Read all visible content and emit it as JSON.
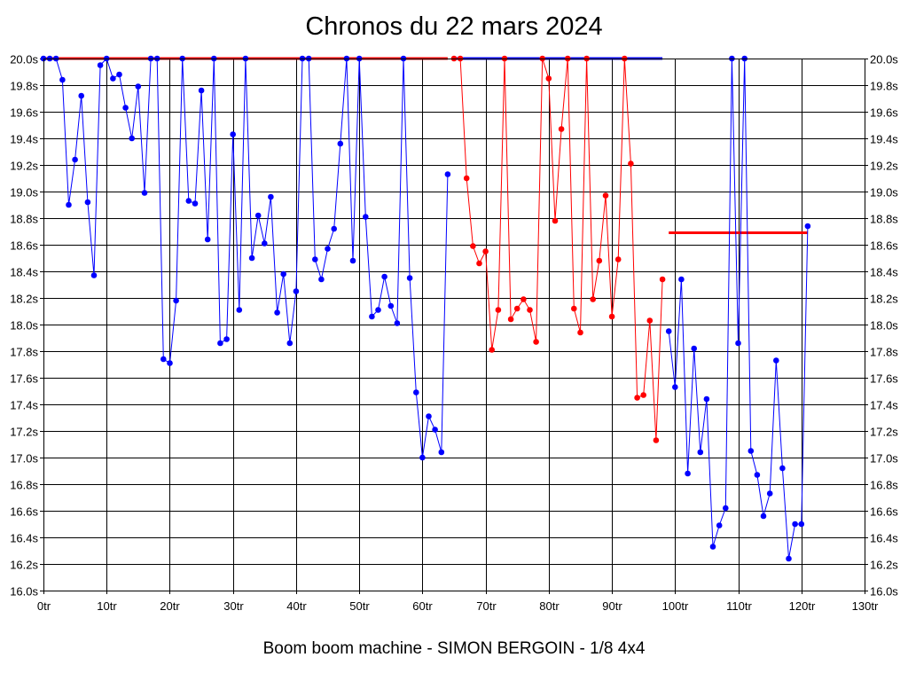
{
  "chart_data": {
    "type": "line",
    "title": "Chronos du 22 mars 2024",
    "subtitle": "Boom boom machine - SIMON BERGOIN - 1/8 4x4",
    "xlabel": "",
    "ylabel": "",
    "xlim": [
      0,
      130
    ],
    "ylim": [
      16.0,
      20.0
    ],
    "x_ticks": [
      0,
      10,
      20,
      30,
      40,
      50,
      60,
      70,
      80,
      90,
      100,
      110,
      120,
      130
    ],
    "x_tick_labels": [
      "0tr",
      "10tr",
      "20tr",
      "30tr",
      "40tr",
      "50tr",
      "60tr",
      "70tr",
      "80tr",
      "90tr",
      "100tr",
      "110tr",
      "120tr",
      "130tr"
    ],
    "y_ticks": [
      16.0,
      16.2,
      16.4,
      16.6,
      16.8,
      17.0,
      17.2,
      17.4,
      17.6,
      17.8,
      18.0,
      18.2,
      18.4,
      18.6,
      18.8,
      19.0,
      19.2,
      19.4,
      19.6,
      19.8,
      20.0
    ],
    "y_tick_labels": [
      "16.0s",
      "16.2s",
      "16.4s",
      "16.6s",
      "16.8s",
      "17.0s",
      "17.2s",
      "17.4s",
      "17.6s",
      "17.8s",
      "18.0s",
      "18.2s",
      "18.4s",
      "18.6s",
      "18.8s",
      "19.0s",
      "19.2s",
      "19.4s",
      "19.6s",
      "19.8s",
      "20.0s"
    ],
    "grid": true,
    "series": [
      {
        "name": "segment-1",
        "color": "#0000ff",
        "x": [
          0,
          1,
          2,
          3,
          4,
          5,
          6,
          7,
          8,
          9,
          10,
          11,
          12,
          13,
          14,
          15,
          16,
          17,
          18,
          19,
          20,
          21,
          22,
          23,
          24,
          25,
          26,
          27,
          28,
          29,
          30,
          31,
          32,
          33,
          34,
          35,
          36,
          37,
          38,
          39,
          40,
          41,
          42,
          43,
          44,
          45,
          46,
          47,
          48,
          49,
          50,
          51,
          52,
          53,
          54,
          55,
          56,
          57,
          58,
          59,
          60,
          61,
          62,
          63,
          64
        ],
        "values": [
          20.0,
          20.0,
          20.0,
          19.84,
          18.9,
          19.24,
          19.72,
          18.92,
          18.37,
          19.95,
          20.0,
          19.85,
          19.88,
          19.63,
          19.4,
          19.79,
          18.99,
          20.0,
          20.0,
          17.74,
          17.71,
          18.18,
          20.0,
          18.93,
          18.91,
          19.76,
          18.64,
          20.0,
          17.86,
          17.89,
          19.43,
          18.11,
          20.0,
          18.5,
          18.82,
          18.61,
          18.96,
          18.09,
          18.38,
          17.86,
          18.25,
          20.0,
          20.0,
          18.49,
          18.34,
          18.57,
          18.72,
          19.36,
          20.0,
          18.48,
          20.0,
          18.81,
          18.06,
          18.11,
          18.36,
          18.14,
          18.01,
          20.0,
          18.35,
          17.49,
          17.0,
          17.31,
          17.21,
          17.04,
          19.13
        ]
      },
      {
        "name": "segment-2",
        "color": "#ff0000",
        "x": [
          65,
          66,
          67,
          68,
          69,
          70,
          71,
          72,
          73,
          74,
          75,
          76,
          77,
          78,
          79,
          80,
          81,
          82,
          83,
          84,
          85,
          86,
          87,
          88,
          89,
          90,
          91,
          92,
          93,
          94,
          95,
          96,
          97,
          98
        ],
        "values": [
          20.0,
          20.0,
          19.1,
          18.59,
          18.46,
          18.55,
          17.81,
          18.11,
          20.0,
          18.04,
          18.12,
          18.19,
          18.11,
          17.87,
          20.0,
          19.85,
          18.78,
          19.47,
          20.0,
          18.12,
          17.94,
          20.0,
          18.19,
          18.48,
          18.97,
          18.06,
          18.49,
          20.0,
          19.21,
          17.45,
          17.47,
          18.03,
          17.13,
          18.34
        ]
      },
      {
        "name": "segment-3",
        "color": "#0000ff",
        "x": [
          99,
          100,
          101,
          102,
          103,
          104,
          105,
          106,
          107,
          108,
          109,
          110,
          111,
          112,
          113,
          114,
          115,
          116,
          117,
          118,
          119,
          120,
          121
        ],
        "values": [
          17.95,
          17.53,
          18.34,
          16.88,
          17.82,
          17.04,
          17.44,
          16.33,
          16.49,
          16.62,
          20.0,
          17.86,
          20.0,
          17.05,
          16.87,
          16.56,
          16.73,
          17.73,
          16.92,
          16.24,
          16.5,
          16.5,
          18.74
        ]
      }
    ],
    "reference_lines": [
      {
        "name": "ref-red-top",
        "color": "#ff0000",
        "x_start": 0,
        "x_end": 64,
        "value": 20.0
      },
      {
        "name": "ref-blue-top",
        "color": "#0000ff",
        "x_start": 65,
        "x_end": 98,
        "value": 20.0
      },
      {
        "name": "ref-red-lower",
        "color": "#ff0000",
        "x_start": 99,
        "x_end": 121,
        "value": 18.69
      }
    ]
  }
}
